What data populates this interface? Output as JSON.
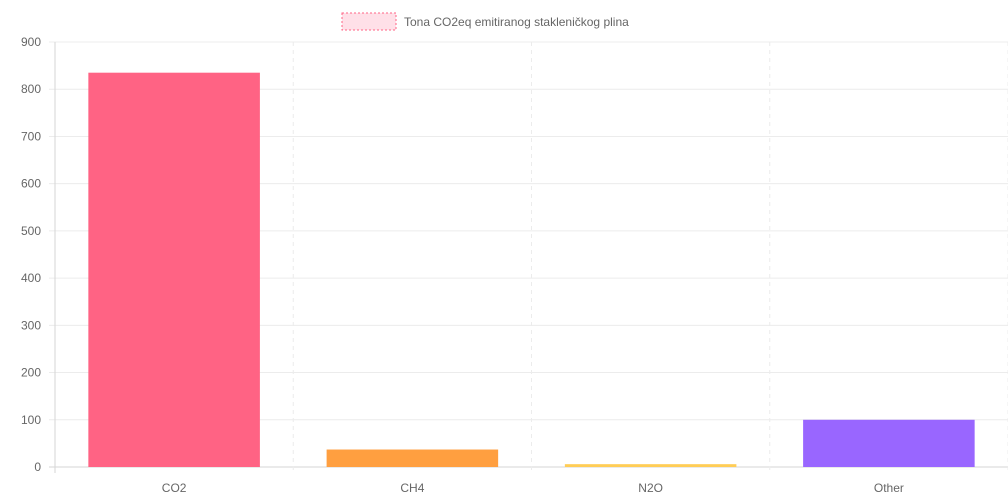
{
  "chart_data": {
    "type": "bar",
    "legend": {
      "label": "Tona CO2eq emitiranog stakleničkog plina",
      "position": "top",
      "swatch_fill": "#ffe0e8",
      "swatch_stroke": "#ff6384"
    },
    "categories": [
      "CO2",
      "CH4",
      "N2O",
      "Other"
    ],
    "values": [
      835,
      37,
      6,
      100
    ],
    "colors": [
      "#ff6384",
      "#ff9f40",
      "#ffcd56",
      "#9966ff"
    ],
    "ylim": [
      0,
      900
    ],
    "y_ticks": [
      "0",
      "100",
      "200",
      "300",
      "400",
      "500",
      "600",
      "700",
      "800",
      "900"
    ],
    "grid": true
  }
}
